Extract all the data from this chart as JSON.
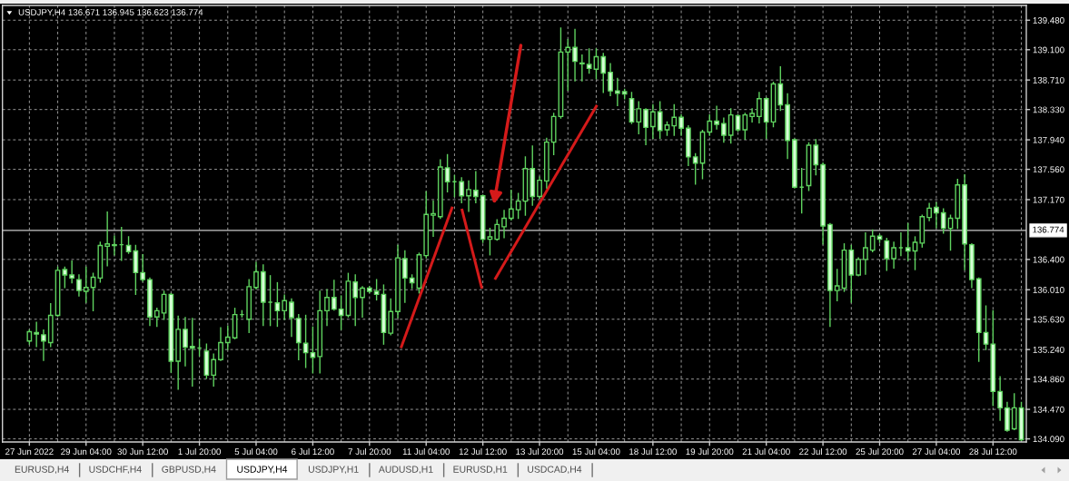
{
  "chart_data": {
    "type": "candlestick",
    "title": "USDJPY,H4 136.671 136.945 136.623 136.774",
    "categories": [
      "27 Jun 2022",
      null,
      null,
      null,
      null,
      null,
      null,
      null,
      "29 Jun 04:00",
      null,
      null,
      null,
      null,
      null,
      null,
      null,
      "30 Jun 12:00",
      null,
      null,
      null,
      null,
      null,
      null,
      null,
      "1 Jul 20:00",
      null,
      null,
      null,
      null,
      null,
      null,
      null,
      "5 Jul 04:00",
      null,
      null,
      null,
      null,
      null,
      null,
      null,
      "6 Jul 12:00",
      null,
      null,
      null,
      null,
      null,
      null,
      null,
      "7 Jul 20:00",
      null,
      null,
      null,
      null,
      null,
      null,
      null,
      "11 Jul 04:00",
      null,
      null,
      null,
      null,
      null,
      null,
      null,
      "12 Jul 12:00",
      null,
      null,
      null,
      null,
      null,
      null,
      null,
      "13 Jul 20:00",
      null,
      null,
      null,
      null,
      null,
      null,
      null,
      "15 Jul 04:00",
      null,
      null,
      null,
      null,
      null,
      null,
      null,
      "18 Jul 12:00",
      null,
      null,
      null,
      null,
      null,
      null,
      null,
      "19 Jul 20:00",
      null,
      null,
      null,
      null,
      null,
      null,
      null,
      "21 Jul 04:00",
      null,
      null,
      null,
      null,
      null,
      null,
      null,
      "22 Jul 12:00",
      null,
      null,
      null,
      null,
      null,
      null,
      null,
      "25 Jul 20:00",
      null,
      null,
      null,
      null,
      null,
      null,
      null,
      "27 Jul 04:00",
      null,
      null,
      null,
      null,
      null,
      null,
      null,
      "28 Jul 12:00",
      null,
      null,
      null,
      null
    ],
    "ohlc": [
      [
        135.35,
        135.49,
        135.31,
        135.47
      ],
      [
        135.46,
        135.59,
        135.28,
        135.44
      ],
      [
        135.43,
        135.49,
        135.1,
        135.35
      ],
      [
        135.33,
        135.83,
        135.28,
        135.68
      ],
      [
        135.68,
        136.3,
        135.67,
        136.26
      ],
      [
        136.27,
        136.3,
        136.04,
        136.2
      ],
      [
        136.2,
        136.38,
        136.1,
        136.16
      ],
      [
        136.14,
        136.2,
        135.93,
        136.0
      ],
      [
        135.99,
        136.3,
        135.85,
        136.04
      ],
      [
        136.04,
        136.22,
        135.74,
        136.17
      ],
      [
        136.16,
        136.62,
        136.11,
        136.58
      ],
      [
        136.57,
        137.01,
        136.32,
        136.6
      ],
      [
        136.58,
        136.7,
        136.46,
        136.59
      ],
      [
        136.59,
        136.81,
        136.39,
        136.59
      ],
      [
        136.58,
        136.69,
        136.48,
        136.5
      ],
      [
        136.51,
        136.58,
        135.95,
        136.23
      ],
      [
        136.23,
        136.46,
        136.12,
        136.14
      ],
      [
        136.14,
        136.16,
        135.55,
        135.66
      ],
      [
        135.66,
        135.77,
        135.54,
        135.74
      ],
      [
        135.71,
        135.99,
        135.63,
        135.95
      ],
      [
        135.95,
        135.96,
        134.95,
        135.09
      ],
      [
        135.09,
        135.67,
        134.73,
        135.5
      ],
      [
        135.5,
        135.65,
        135.03,
        135.27
      ],
      [
        135.28,
        135.64,
        134.77,
        135.26
      ],
      [
        135.26,
        135.37,
        135.16,
        135.26
      ],
      [
        135.22,
        135.31,
        134.87,
        134.91
      ],
      [
        134.91,
        135.18,
        134.77,
        135.11
      ],
      [
        135.11,
        135.52,
        135.1,
        135.33
      ],
      [
        135.33,
        135.54,
        135.24,
        135.4
      ],
      [
        135.39,
        135.77,
        135.38,
        135.69
      ],
      [
        135.69,
        135.74,
        135.66,
        135.69
      ],
      [
        135.63,
        136.14,
        135.46,
        136.05
      ],
      [
        136.04,
        136.36,
        136.02,
        136.24
      ],
      [
        136.24,
        136.33,
        135.55,
        135.85
      ],
      [
        135.85,
        136.19,
        135.55,
        135.85
      ],
      [
        135.84,
        136.1,
        135.54,
        135.74
      ],
      [
        135.74,
        135.94,
        135.63,
        135.87
      ],
      [
        135.85,
        135.89,
        135.41,
        135.65
      ],
      [
        135.64,
        135.69,
        135.11,
        135.33
      ],
      [
        135.32,
        135.68,
        135.01,
        135.2
      ],
      [
        135.2,
        135.53,
        134.94,
        135.14
      ],
      [
        135.15,
        135.99,
        134.94,
        135.74
      ],
      [
        135.74,
        136.01,
        135.55,
        135.91
      ],
      [
        135.91,
        136.13,
        135.75,
        135.76
      ],
      [
        135.76,
        135.93,
        135.5,
        135.68
      ],
      [
        135.68,
        136.22,
        135.66,
        136.12
      ],
      [
        136.11,
        136.2,
        135.55,
        135.91
      ],
      [
        135.91,
        136.05,
        135.66,
        136.03
      ],
      [
        136.03,
        136.05,
        135.97,
        135.99
      ],
      [
        135.99,
        136.14,
        135.88,
        135.95
      ],
      [
        135.95,
        136.07,
        135.31,
        135.46
      ],
      [
        135.45,
        135.89,
        135.43,
        135.73
      ],
      [
        135.73,
        136.58,
        135.65,
        136.42
      ],
      [
        136.41,
        136.51,
        135.85,
        136.16
      ],
      [
        136.16,
        136.2,
        136.03,
        136.1
      ],
      [
        136.03,
        136.48,
        135.97,
        136.46
      ],
      [
        136.45,
        137.27,
        136.42,
        136.98
      ],
      [
        136.97,
        137.15,
        136.7,
        136.99
      ],
      [
        136.95,
        137.68,
        136.93,
        137.59
      ],
      [
        137.58,
        137.75,
        137.27,
        137.4
      ],
      [
        137.4,
        137.48,
        137.21,
        137.4
      ],
      [
        137.4,
        137.45,
        137.13,
        137.22
      ],
      [
        137.22,
        137.41,
        137.02,
        137.3
      ],
      [
        137.29,
        137.53,
        137.13,
        137.21
      ],
      [
        137.22,
        137.23,
        136.62,
        136.66
      ],
      [
        136.66,
        136.8,
        136.46,
        136.69
      ],
      [
        136.66,
        136.91,
        136.65,
        136.85
      ],
      [
        136.82,
        137.03,
        136.68,
        136.93
      ],
      [
        136.93,
        137.29,
        136.91,
        137.05
      ],
      [
        137.04,
        137.25,
        136.93,
        137.15
      ],
      [
        137.15,
        137.72,
        136.97,
        137.57
      ],
      [
        137.57,
        137.86,
        137.1,
        137.21
      ],
      [
        137.21,
        137.46,
        137.19,
        137.42
      ],
      [
        137.41,
        137.96,
        137.32,
        137.91
      ],
      [
        137.91,
        138.28,
        137.75,
        138.24
      ],
      [
        138.24,
        139.38,
        138.22,
        139.07
      ],
      [
        139.07,
        139.23,
        138.58,
        139.13
      ],
      [
        139.13,
        139.36,
        138.7,
        138.95
      ],
      [
        138.93,
        139.03,
        138.7,
        138.92
      ],
      [
        138.91,
        139.11,
        138.8,
        138.86
      ],
      [
        138.85,
        139.11,
        138.73,
        139.01
      ],
      [
        139.01,
        139.05,
        138.55,
        138.8
      ],
      [
        138.81,
        138.92,
        138.51,
        138.57
      ],
      [
        138.57,
        138.73,
        138.38,
        138.54
      ],
      [
        138.56,
        138.59,
        138.47,
        138.53
      ],
      [
        138.47,
        138.55,
        138.15,
        138.17
      ],
      [
        138.17,
        138.43,
        138.02,
        138.34
      ],
      [
        138.33,
        138.34,
        137.88,
        138.1
      ],
      [
        138.11,
        138.39,
        137.96,
        138.3
      ],
      [
        138.3,
        138.43,
        137.96,
        138.06
      ],
      [
        138.07,
        138.17,
        138.0,
        138.13
      ],
      [
        138.12,
        138.39,
        138.0,
        138.23
      ],
      [
        138.23,
        138.26,
        138.0,
        138.09
      ],
      [
        138.09,
        138.12,
        137.61,
        137.72
      ],
      [
        137.72,
        137.76,
        137.37,
        137.64
      ],
      [
        137.64,
        138.06,
        137.44,
        138.04
      ],
      [
        138.04,
        138.26,
        138.0,
        138.18
      ],
      [
        138.18,
        138.37,
        138.08,
        138.14
      ],
      [
        138.15,
        138.22,
        137.91,
        138.0
      ],
      [
        138.0,
        138.34,
        137.9,
        138.26
      ],
      [
        138.25,
        138.26,
        138.05,
        138.07
      ],
      [
        138.07,
        138.28,
        137.95,
        138.26
      ],
      [
        138.24,
        138.34,
        138.17,
        138.28
      ],
      [
        138.24,
        138.55,
        138.16,
        138.47
      ],
      [
        138.47,
        138.48,
        137.96,
        138.17
      ],
      [
        138.17,
        138.68,
        138.11,
        138.66
      ],
      [
        138.66,
        138.88,
        138.32,
        138.39
      ],
      [
        138.39,
        138.53,
        137.7,
        137.93
      ],
      [
        137.94,
        137.95,
        137.32,
        137.33
      ],
      [
        137.33,
        137.57,
        137.0,
        137.33
      ],
      [
        137.35,
        137.9,
        137.29,
        137.87
      ],
      [
        137.87,
        137.94,
        137.49,
        137.62
      ],
      [
        137.62,
        137.64,
        136.6,
        136.83
      ],
      [
        136.85,
        136.86,
        135.54,
        136.0
      ],
      [
        136.0,
        136.27,
        135.87,
        136.06
      ],
      [
        136.03,
        136.6,
        135.99,
        136.52
      ],
      [
        136.52,
        136.58,
        135.85,
        136.2
      ],
      [
        136.2,
        136.42,
        136.19,
        136.4
      ],
      [
        136.4,
        136.74,
        136.21,
        136.55
      ],
      [
        136.52,
        136.78,
        136.5,
        136.7
      ],
      [
        136.7,
        136.72,
        136.62,
        136.66
      ],
      [
        136.64,
        136.67,
        136.26,
        136.41
      ],
      [
        136.41,
        136.62,
        136.29,
        136.55
      ],
      [
        136.55,
        136.74,
        136.45,
        136.55
      ],
      [
        136.55,
        136.86,
        136.39,
        136.51
      ],
      [
        136.51,
        136.69,
        136.27,
        136.62
      ],
      [
        136.61,
        136.97,
        136.56,
        136.95
      ],
      [
        136.94,
        137.12,
        136.9,
        137.06
      ],
      [
        137.07,
        137.13,
        136.81,
        137.0
      ],
      [
        137.0,
        137.05,
        136.74,
        136.8
      ],
      [
        136.8,
        136.97,
        136.52,
        136.93
      ],
      [
        136.93,
        137.43,
        136.8,
        137.36
      ],
      [
        137.36,
        137.49,
        136.27,
        136.6
      ],
      [
        136.59,
        136.6,
        136.04,
        136.14
      ],
      [
        136.15,
        136.16,
        135.09,
        135.46
      ],
      [
        135.46,
        135.8,
        135.24,
        135.31
      ],
      [
        135.31,
        135.74,
        134.52,
        134.7
      ],
      [
        134.7,
        134.89,
        134.33,
        134.49
      ],
      [
        134.49,
        134.56,
        134.19,
        134.2
      ],
      [
        134.22,
        134.67,
        134.21,
        134.49
      ],
      [
        134.49,
        134.56,
        134.07,
        134.08
      ]
    ],
    "color": "#5fd35f",
    "colors": [
      "#000000",
      "#d6ffd6",
      "#d6ffd6",
      "#000000",
      "#000000",
      "#d6ffd6",
      "#d6ffd6",
      "#d6ffd6",
      "#000000",
      "#000000",
      "#000000",
      "#000000",
      "#000000",
      "#5fd35f",
      "#d6ffd6",
      "#d6ffd6",
      "#d6ffd6",
      "#d6ffd6",
      "#000000",
      "#000000",
      "#d6ffd6",
      "#000000",
      "#d6ffd6",
      "#d6ffd6",
      "#5fd35f",
      "#d6ffd6",
      "#000000",
      "#000000",
      "#000000",
      "#000000",
      "#5fd35f",
      "#000000",
      "#000000",
      "#d6ffd6",
      "#5fd35f",
      "#d6ffd6",
      "#000000",
      "#d6ffd6",
      "#d6ffd6",
      "#d6ffd6",
      "#d6ffd6",
      "#000000",
      "#000000",
      "#d6ffd6",
      "#d6ffd6",
      "#000000",
      "#d6ffd6",
      "#000000",
      "#d6ffd6",
      "#d6ffd6",
      "#d6ffd6",
      "#000000",
      "#000000",
      "#d6ffd6",
      "#d6ffd6",
      "#000000",
      "#000000",
      "#000000",
      "#000000",
      "#d6ffd6",
      "#5fd35f",
      "#d6ffd6",
      "#000000",
      "#d6ffd6",
      "#d6ffd6",
      "#000000",
      "#000000",
      "#000000",
      "#000000",
      "#000000",
      "#000000",
      "#d6ffd6",
      "#000000",
      "#000000",
      "#000000",
      "#000000",
      "#000000",
      "#d6ffd6",
      "#d6ffd6",
      "#d6ffd6",
      "#000000",
      "#d6ffd6",
      "#d6ffd6",
      "#d6ffd6",
      "#d6ffd6",
      "#d6ffd6",
      "#000000",
      "#d6ffd6",
      "#000000",
      "#d6ffd6",
      "#000000",
      "#000000",
      "#d6ffd6",
      "#d6ffd6",
      "#d6ffd6",
      "#000000",
      "#000000",
      "#d6ffd6",
      "#d6ffd6",
      "#000000",
      "#d6ffd6",
      "#000000",
      "#000000",
      "#000000",
      "#d6ffd6",
      "#000000",
      "#d6ffd6",
      "#d6ffd6",
      "#d6ffd6",
      "#5fd35f",
      "#000000",
      "#d6ffd6",
      "#d6ffd6",
      "#d6ffd6",
      "#000000",
      "#000000",
      "#d6ffd6",
      "#000000",
      "#000000",
      "#000000",
      "#d6ffd6",
      "#d6ffd6",
      "#000000",
      "#5fd35f",
      "#d6ffd6",
      "#000000",
      "#000000",
      "#000000",
      "#d6ffd6",
      "#d6ffd6",
      "#000000",
      "#000000",
      "#d6ffd6",
      "#d6ffd6",
      "#d6ffd6",
      "#d6ffd6",
      "#d6ffd6",
      "#d6ffd6",
      "#d6ffd6",
      "#000000",
      "#d6ffd6"
    ],
    "ylim": [
      134.05,
      139.67
    ],
    "yticks": [
      {
        "value": 139.48,
        "label": "139.480"
      },
      {
        "value": 139.1,
        "label": "139.100"
      },
      {
        "value": 138.71,
        "label": "138.710"
      },
      {
        "value": 138.33,
        "label": "138.330"
      },
      {
        "value": 137.94,
        "label": "137.940"
      },
      {
        "value": 137.56,
        "label": "137.560"
      },
      {
        "value": 137.17,
        "label": "137.170"
      },
      {
        "value": 136.4,
        "label": "136.400"
      },
      {
        "value": 136.01,
        "label": "136.010"
      },
      {
        "value": 135.63,
        "label": "135.630"
      },
      {
        "value": 135.24,
        "label": "135.240"
      },
      {
        "value": 134.86,
        "label": "134.860"
      },
      {
        "value": 134.47,
        "label": "134.470"
      },
      {
        "value": 134.09,
        "label": "134.090"
      }
    ],
    "grid": true,
    "ref_lines": [
      {
        "axis": "y",
        "value": 136.774,
        "label": "136.774",
        "color": "#c8c8c8"
      }
    ],
    "annotations": [
      "EURUSD,H4",
      "USDCHF,H4",
      "GBPUSD,H4",
      "USDJPY,H4",
      "USDJPY,H1",
      "AUDUSD,H1",
      "EURUSD,H1",
      "USDCAD,H4"
    ]
  }
}
